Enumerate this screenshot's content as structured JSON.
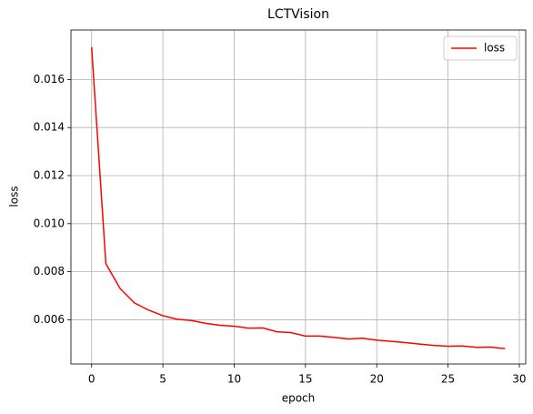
{
  "chart_data": {
    "type": "line",
    "title": "LCTVision",
    "xlabel": "epoch",
    "ylabel": "loss",
    "x": [
      0,
      1,
      2,
      3,
      4,
      5,
      6,
      7,
      8,
      9,
      10,
      11,
      12,
      13,
      14,
      15,
      16,
      17,
      18,
      19,
      20,
      21,
      22,
      23,
      24,
      25,
      26,
      27,
      28,
      29
    ],
    "series": [
      {
        "name": "loss",
        "color": "#ff0000",
        "values": [
          0.01735,
          0.00833,
          0.0073,
          0.0067,
          0.0064,
          0.00617,
          0.00602,
          0.00597,
          0.00585,
          0.00577,
          0.00573,
          0.00565,
          0.00566,
          0.0055,
          0.00546,
          0.00532,
          0.00532,
          0.00527,
          0.0052,
          0.00523,
          0.00515,
          0.0051,
          0.00505,
          0.00499,
          0.00493,
          0.0049,
          0.00491,
          0.00485,
          0.00486,
          0.0048
        ]
      }
    ],
    "xlim": [
      -1.45,
      30.45
    ],
    "xticks": [
      0,
      5,
      10,
      15,
      20,
      25,
      30
    ],
    "ylim": [
      0.00416,
      0.01806
    ],
    "yticks": [
      0.006,
      0.008,
      {
        "value": 0.01,
        "label": "0.010"
      },
      0.012,
      0.014,
      0.016
    ],
    "grid": true,
    "legend": "upper right"
  }
}
